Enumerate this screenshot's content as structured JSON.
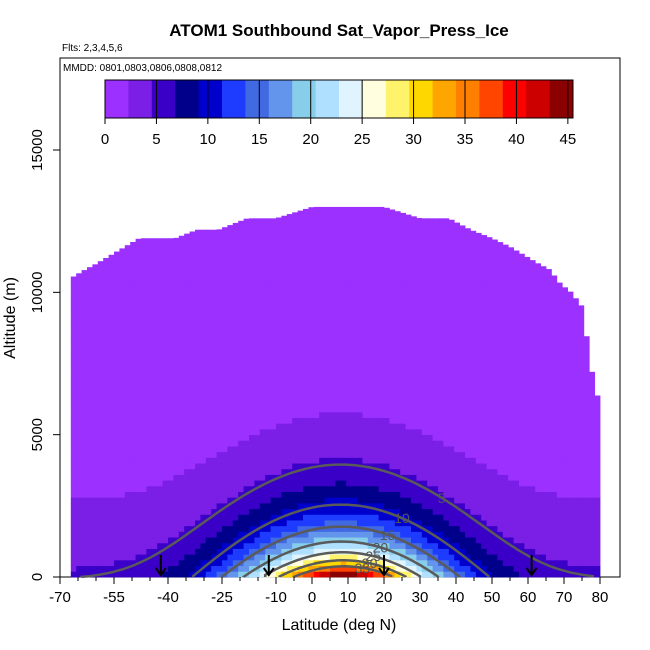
{
  "chart_data": {
    "type": "heatmap",
    "title": "ATOM1 Southbound Sat_Vapor_Press_Ice",
    "flights_label": "Flts: 2,3,4,5,6",
    "dates_label": "MMDD: 0801,0803,0806,0808,0812",
    "xlabel": "Latitude (deg N)",
    "ylabel": "Altitude (m)",
    "xlim": [
      -70,
      82
    ],
    "ylim": [
      0,
      17000
    ],
    "x_ticks": [
      -70,
      -55,
      -40,
      -25,
      -10,
      0,
      10,
      20,
      30,
      40,
      50,
      60,
      70,
      80
    ],
    "x_tick_labels": [
      "-70",
      "-55",
      "-40",
      "-25",
      "-10",
      "0",
      "10",
      "20",
      "30",
      "40",
      "50",
      "60",
      "70",
      "80"
    ],
    "y_ticks": [
      0,
      5000,
      10000,
      15000
    ],
    "y_tick_labels": [
      "0",
      "5000",
      "10000",
      "15000"
    ],
    "colorbar": {
      "min": 0,
      "max": 45.5,
      "ticks": [
        0,
        5,
        10,
        15,
        20,
        25,
        30,
        35,
        40,
        45
      ],
      "tick_labels": [
        "0",
        "5",
        "10",
        "15",
        "20",
        "25",
        "30",
        "35",
        "40",
        "45"
      ],
      "colors": [
        "#9b30ff",
        "#7b1fe6",
        "#3a00c8",
        "#00008b",
        "#0000cd",
        "#1e3cff",
        "#4169e1",
        "#6495ed",
        "#87ceeb",
        "#b0e0ff",
        "#e0f4ff",
        "#ffffe0",
        "#fff36b",
        "#ffd700",
        "#ffa500",
        "#ff7f00",
        "#ff4500",
        "#ff0000",
        "#cd0000",
        "#8b0000"
      ]
    },
    "contour_levels": [
      5,
      10,
      15,
      20,
      25,
      30,
      35
    ],
    "contour_label_texts": [
      "5",
      "10",
      "15",
      "20",
      "25",
      "30",
      "35"
    ],
    "top_altitude_profile": {
      "lat": [
        -70,
        -67,
        -63,
        -60,
        -56,
        -52,
        -48,
        -42,
        -38,
        -32,
        -26,
        -18,
        -10,
        0,
        10,
        20,
        30,
        38,
        44,
        50,
        55,
        59,
        63,
        66,
        69,
        72,
        75,
        78,
        80
      ],
      "alt": [
        10500,
        10500,
        10800,
        11000,
        11300,
        11600,
        11900,
        11900,
        11900,
        12200,
        12200,
        12600,
        12600,
        13000,
        13000,
        13000,
        12600,
        12600,
        12200,
        11900,
        11600,
        11300,
        11000,
        10800,
        10300,
        10000,
        9500,
        7000,
        6000
      ]
    },
    "flight_markers_lat": [
      -42,
      -12,
      20,
      61
    ]
  }
}
